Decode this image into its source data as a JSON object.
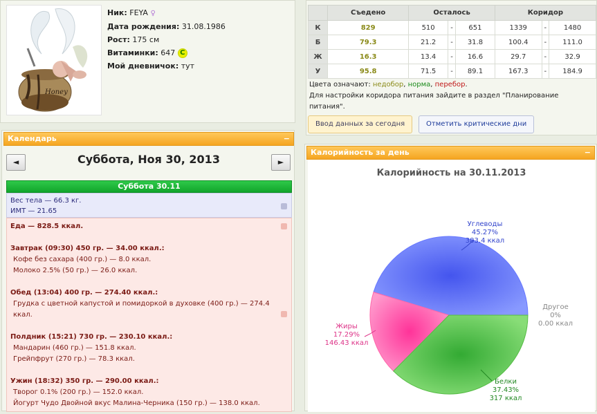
{
  "profile": {
    "nick_label": "Ник:",
    "nick": "FEYA",
    "dob_label": "Дата рождения:",
    "dob": "31.08.1986",
    "height_label": "Рост:",
    "height": "175 см",
    "vitamins_label": "Витаминки:",
    "vitamins": "647",
    "vitamin_badge": "С",
    "diary_label": "Мой дневничок:",
    "diary": "тут",
    "avatar_caption": "Honey"
  },
  "calendar": {
    "header": "Календарь",
    "minimize": "−",
    "prev": "◄",
    "next": "►",
    "date_title": "Суббота, Ноя 30, 2013",
    "day_bar": "Суббота 30.11",
    "weight": "Вес тела — 66.3 кг.",
    "bmi": "ИМТ — 21.65",
    "food_total": "Еда — 828.5 ккал.",
    "meals": [
      {
        "title": "Завтрак (09:30) 450 гр. — 34.00 ккал.:",
        "items": [
          "Кофе без сахара (400 гр.) — 8.0 ккал.",
          "Молоко 2.5% (50 гр.) — 26.0 ккал."
        ]
      },
      {
        "title": "Обед (13:04) 400 гр. — 274.40 ккал.:",
        "items": [
          "Грудка с цветной капустой и помидоркой в духовке (400 гр.) — 274.4 ккал."
        ]
      },
      {
        "title": "Полдник (15:21) 730 гр. — 230.10 ккал.:",
        "items": [
          "Мандарин (460 гр.) — 151.8 ккал.",
          "Грейпфрут (270 гр.) — 78.3 ккал."
        ]
      },
      {
        "title": "Ужин (18:32) 350 гр. — 290.00 ккал.:",
        "items": [
          "Творог 0.1% (200 гр.) — 152.0 ккал.",
          "Йогурт Чудо Двойной вкус Малина-Черника (150 гр.) — 138.0 ккал."
        ]
      }
    ]
  },
  "nutrients": {
    "headers": [
      "Съедено",
      "Осталось",
      "Коридор"
    ],
    "rows": [
      {
        "label": "К",
        "eaten": "829",
        "left_from": "510",
        "left_to": "651",
        "cor_from": "1339",
        "cor_to": "1480"
      },
      {
        "label": "Б",
        "eaten": "79.3",
        "left_from": "21.2",
        "left_to": "31.8",
        "cor_from": "100.4",
        "cor_to": "111.0"
      },
      {
        "label": "Ж",
        "eaten": "16.3",
        "left_from": "13.4",
        "left_to": "16.6",
        "cor_from": "29.7",
        "cor_to": "32.9"
      },
      {
        "label": "У",
        "eaten": "95.8",
        "left_from": "71.5",
        "left_to": "89.1",
        "cor_from": "167.3",
        "cor_to": "184.9"
      }
    ],
    "dash": "-",
    "colors_prefix": "Цвета означают: ",
    "under": "недобор",
    "norm": "норма",
    "over": "перебор",
    "sep": ", ",
    "dot": ".",
    "note": "Для настройки коридора питания зайдите в раздел \"Планирование питания\".",
    "btn_today": "Ввод данных за сегодня",
    "btn_critical": "Отметить критические дни",
    "colors": {
      "under": "#8a8a18",
      "norm": "#1a8a1a",
      "over": "#c01818"
    }
  },
  "calorie_panel": {
    "header": "Калорийность за день",
    "minimize": "−"
  },
  "chart_data": {
    "type": "pie",
    "title": "Калорийность на 30.11.2013",
    "slices": [
      {
        "name": "Углеводы",
        "percent": 45.27,
        "value": 383.4,
        "color": "#6677ff",
        "pct_label": "45.27%",
        "val_label": "383.4 ккал"
      },
      {
        "name": "Белки",
        "percent": 37.43,
        "value": 317,
        "color": "#55bb44",
        "pct_label": "37.43%",
        "val_label": "317 ккал"
      },
      {
        "name": "Жиры",
        "percent": 17.29,
        "value": 146.43,
        "color": "#ff66aa",
        "pct_label": "17.29%",
        "val_label": "146.43 ккал"
      },
      {
        "name": "Другое",
        "percent": 0,
        "value": 0.0,
        "color": "#aaaaaa",
        "pct_label": "0%",
        "val_label": "0.00 ккал"
      }
    ]
  }
}
